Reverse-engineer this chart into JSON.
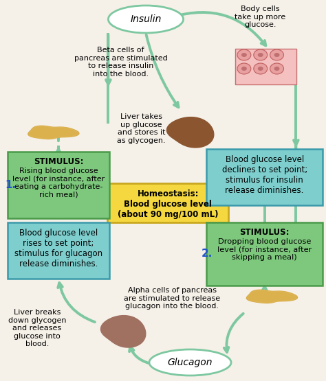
{
  "background_color": "#f5f0e8",
  "green_box_color": "#7dc87d",
  "blue_box_color": "#7ecece",
  "yellow_box_color": "#f5d840",
  "green_arrow_color": "#7dc8a0",
  "box_edge_green": "#4a9a4a",
  "box_edge_blue": "#3a9aaa",
  "box_edge_yellow": "#c8a820",
  "insulin_text": "Insulin",
  "glucagon_text": "Glucagon",
  "text_beta": "Beta cells of\npancreas are stimulated\nto release insulin\ninto the blood.",
  "text_alpha": "Alpha cells of pancreas\nare stimulated to release\nglucagon into the blood.",
  "text_liver_up": "Liver takes\nup glucose\nand stores it\nas glycogen.",
  "text_liver_down": "Liver breaks\ndown glycogen\nand releases\nglucose into\nblood.",
  "text_body_cells": "Body cells\ntake up more\nglucose.",
  "homeostasis_text": "Homeostasis:\nBlood glucose level\n(about 90 mg/100 mL)",
  "stimulus1_title": "STIMULUS:",
  "stimulus1_body": "Rising blood glucose\nlevel (for instance, after\neating a carbohydrate-\nrich meal)",
  "stimulus2_title": "STIMULUS:",
  "stimulus2_body": "Dropping blood glucose\nlevel (for instance, after\nskipping a meal)",
  "blood_decline_text": "Blood glucose level\ndeclines to set point;\nstimulus for insulin\nrelease diminishes.",
  "blood_rise_text": "Blood glucose level\nrises to set point;\nstimulus for glucagon\nrelease diminishes.",
  "label1": "1.",
  "label2": "2."
}
